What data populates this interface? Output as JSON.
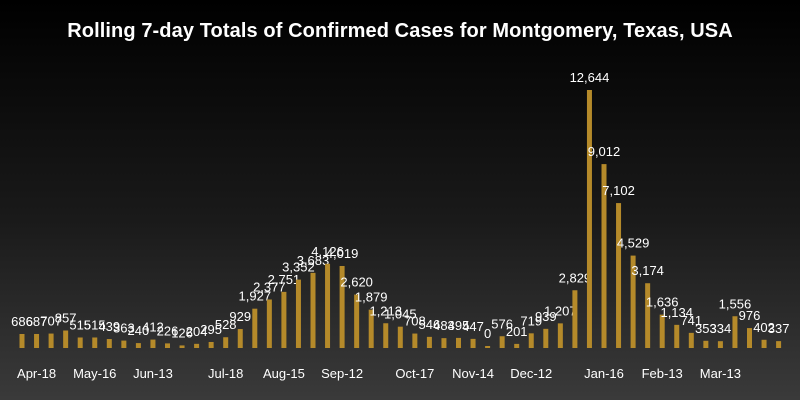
{
  "chart_data": {
    "type": "bar",
    "title": "Rolling 7-day Totals of Confirmed Cases for Montgomery, Texas, USA",
    "xlabel": "",
    "ylabel": "",
    "bar_color": "#b58a2a",
    "tick_labels": [
      "Apr-18",
      "May-16",
      "Jun-13",
      "Jul-18",
      "Aug-15",
      "Sep-12",
      "Oct-17",
      "Nov-14",
      "Dec-12",
      "Jan-16",
      "Feb-13",
      "Mar-13"
    ],
    "values": [
      686,
      687,
      707,
      857,
      515,
      515,
      439,
      363,
      240,
      412,
      226,
      126,
      204,
      295,
      528,
      929,
      1927,
      2377,
      2751,
      3352,
      3683,
      4126,
      4019,
      2620,
      1879,
      1213,
      1045,
      708,
      546,
      483,
      495,
      447,
      0,
      576,
      201,
      719,
      939,
      1207,
      2829,
      12644,
      9012,
      7102,
      4529,
      3174,
      1636,
      1134,
      741,
      353,
      334,
      1556,
      976,
      402,
      337
    ],
    "data_labels": [
      "686",
      "687",
      "707",
      "857",
      "515",
      "515",
      "439",
      "363",
      "240",
      "412",
      "226",
      "126",
      "204",
      "295",
      "528",
      "929",
      "1,927",
      "2,377",
      "2,751",
      "3,352",
      "3,683",
      "4,126",
      "4,019",
      "2,620",
      "1,879",
      "1,213",
      "1,045",
      "708",
      "546",
      "483",
      "495",
      "447",
      "0",
      "576",
      "201",
      "719",
      "939",
      "1,207",
      "2,829",
      "12,644",
      "9,012",
      "7,102",
      "4,529",
      "3,174",
      "1,636",
      "1,134",
      "741",
      "353",
      "334",
      "1,556",
      "976",
      "402",
      "337"
    ],
    "grid": false,
    "legend": "none"
  }
}
